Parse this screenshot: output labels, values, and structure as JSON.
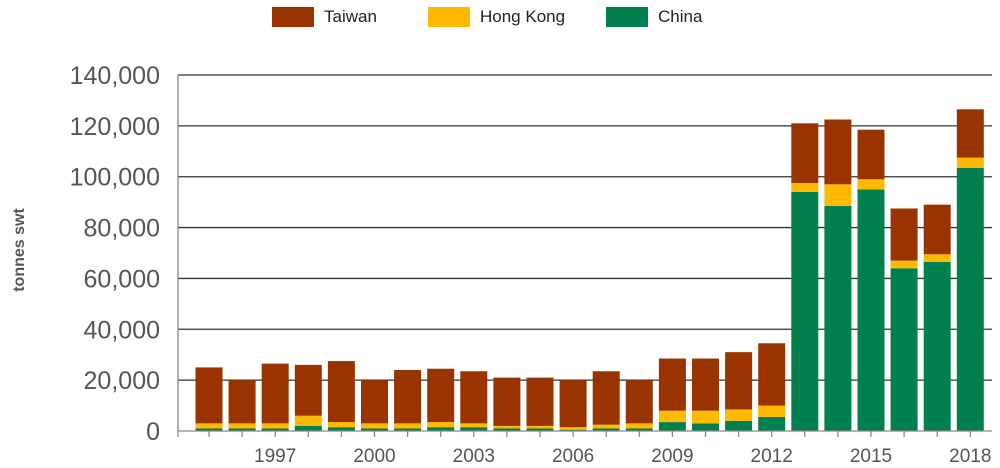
{
  "chart_data": {
    "type": "bar",
    "stacked": true,
    "title": "",
    "xlabel": "",
    "ylabel": "tonnes swt",
    "ylim": [
      0,
      140000
    ],
    "yticks": [
      0,
      20000,
      40000,
      60000,
      80000,
      100000,
      120000,
      140000
    ],
    "ytick_labels": [
      "0",
      "20,000",
      "40,000",
      "60,000",
      "80,000",
      "100,000",
      "120,000",
      "140,000"
    ],
    "grid": true,
    "legend_position": "top",
    "x": [
      1995,
      1996,
      1997,
      1998,
      1999,
      2000,
      2001,
      2002,
      2003,
      2004,
      2005,
      2006,
      2007,
      2008,
      2009,
      2010,
      2011,
      2012,
      2013,
      2014,
      2015,
      2016,
      2017,
      2018
    ],
    "xtick_labels": [
      "1997",
      "2000",
      "2003",
      "2006",
      "2009",
      "2012",
      "2015",
      "2018"
    ],
    "series": [
      {
        "name": "China",
        "color": "#007F4F",
        "values": [
          1000,
          1000,
          1000,
          2000,
          1500,
          1000,
          1000,
          1500,
          1500,
          1000,
          1000,
          500,
          1000,
          1000,
          3500,
          3000,
          4000,
          5500,
          94000,
          88500,
          95000,
          64000,
          66500,
          103500
        ]
      },
      {
        "name": "Hong Kong",
        "color": "#FFB900",
        "values": [
          2000,
          2000,
          2000,
          4000,
          2000,
          2000,
          2000,
          2000,
          1500,
          1000,
          1000,
          1000,
          1500,
          2000,
          4500,
          5000,
          4500,
          4500,
          3500,
          8500,
          4000,
          3000,
          3000,
          4000
        ]
      },
      {
        "name": "Taiwan",
        "color": "#993300",
        "values": [
          22000,
          17000,
          23500,
          20000,
          24000,
          17000,
          21000,
          21000,
          20500,
          19000,
          19000,
          18500,
          21000,
          17000,
          20500,
          20500,
          22500,
          24500,
          23500,
          25500,
          19500,
          20500,
          19500,
          19000
        ]
      }
    ],
    "legend_order": [
      "Taiwan",
      "Hong Kong",
      "China"
    ]
  },
  "axis_color": "#888888",
  "grid_color": "#333333",
  "tick_label_color": "#555555"
}
